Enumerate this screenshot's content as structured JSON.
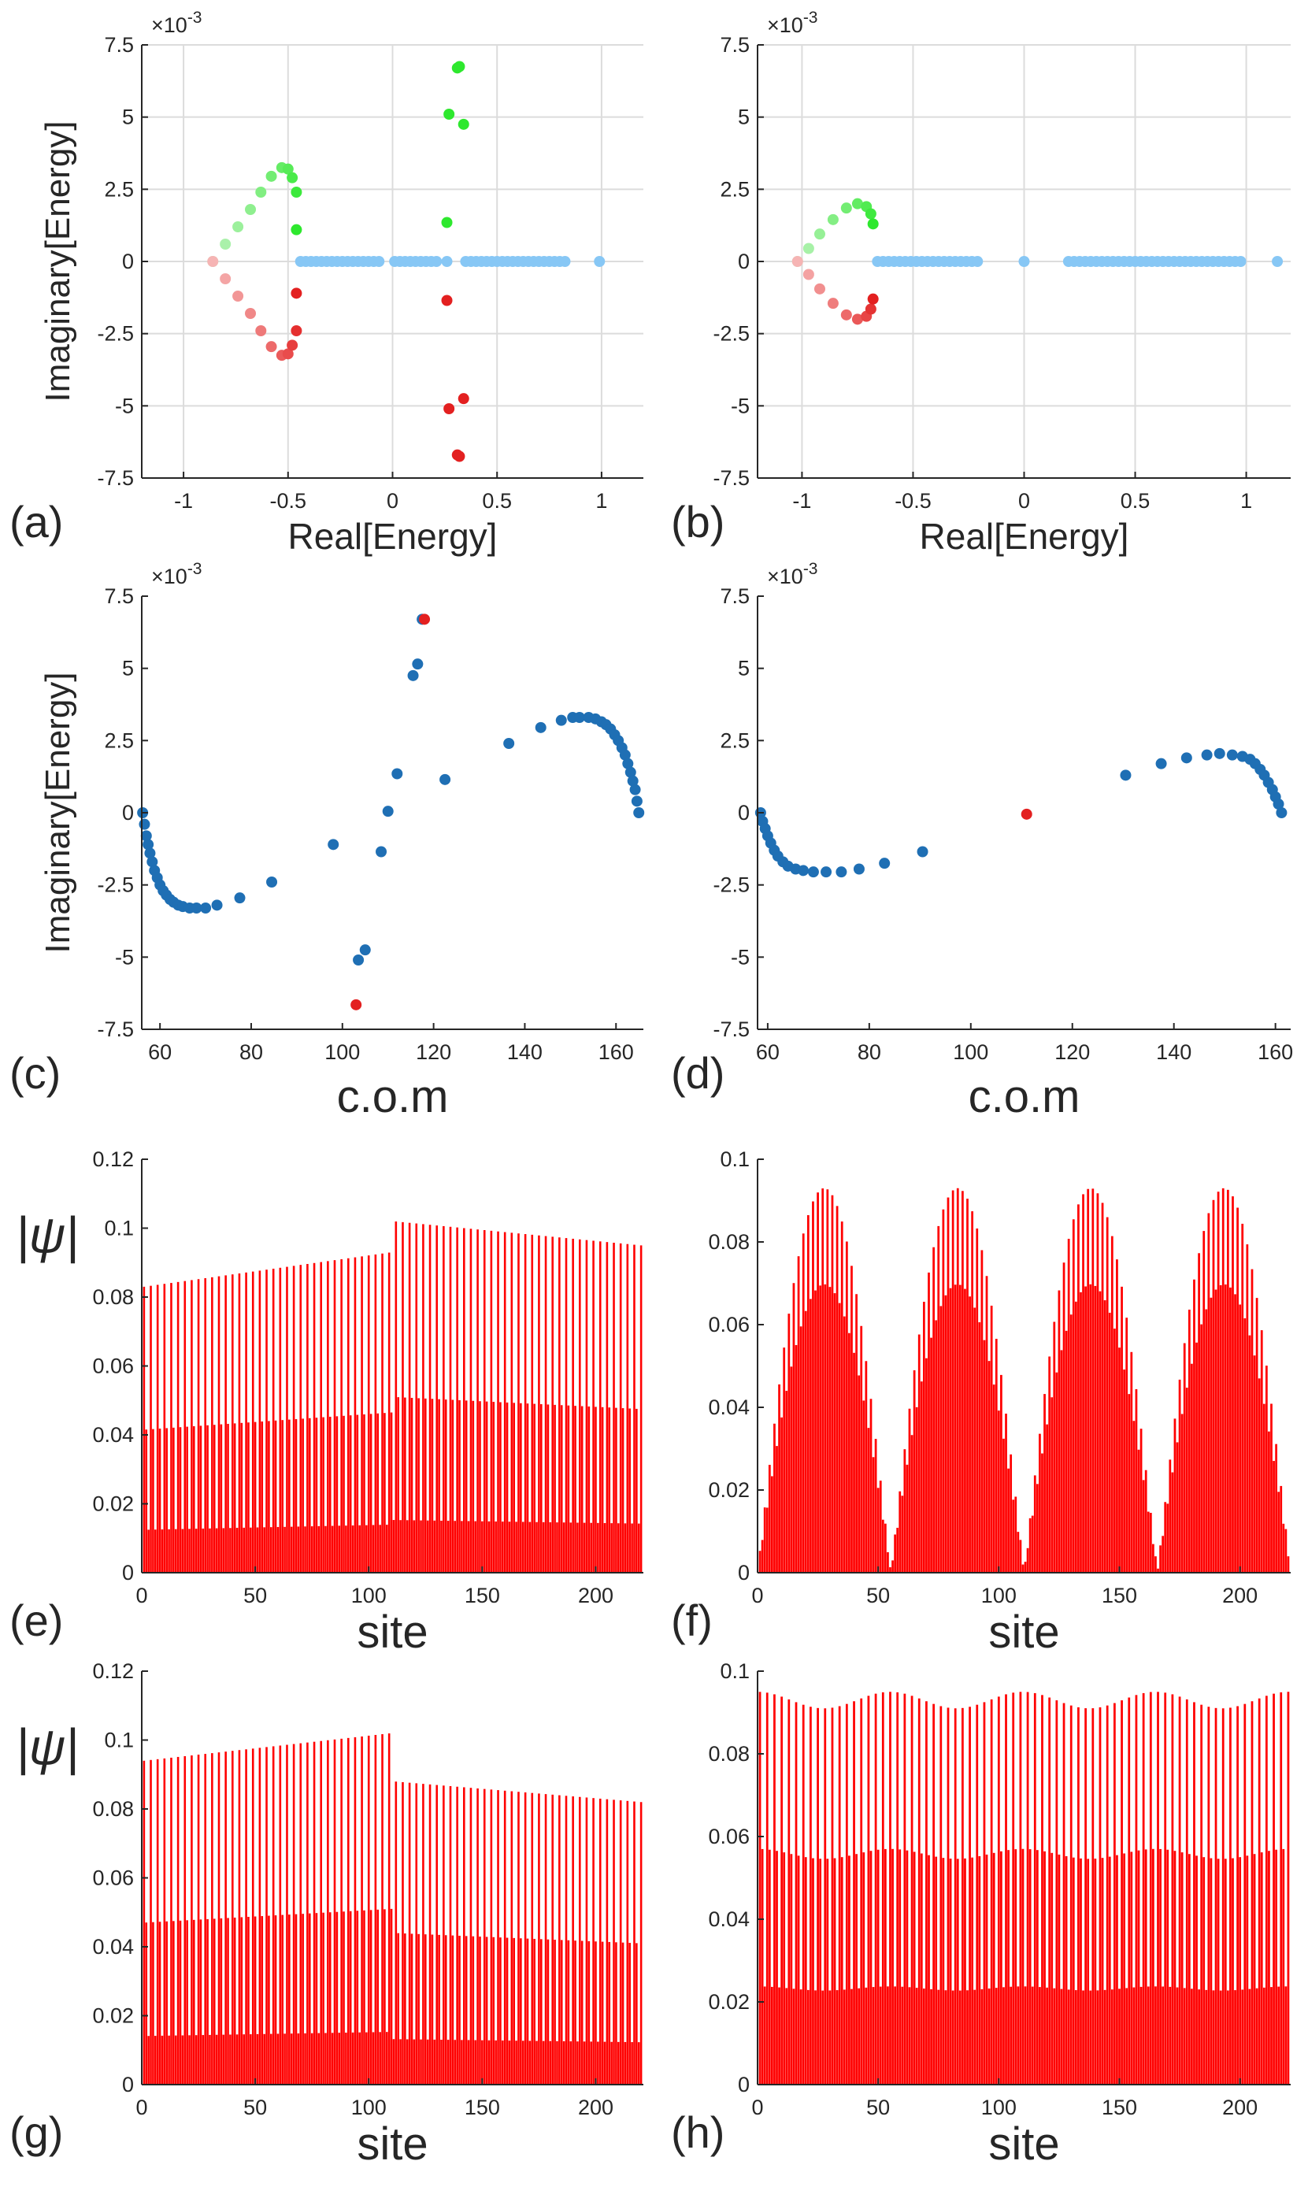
{
  "figure": {
    "colors": {
      "cyan": "#87c7f5",
      "blue": "#1f6fb4",
      "red": "#e32020",
      "redLight": "#f6b4b4",
      "green": "#2ee82e",
      "greenLight": "#b8f2b8",
      "bar": "#ff0000",
      "axis": "#262626",
      "grid": "#dcdcdc"
    }
  },
  "chart_data": [
    {
      "id": "a",
      "type": "scatter",
      "panel_label": "(a)",
      "xlabel": "Real[Energy]",
      "ylabel": "Imaginary[Energy]",
      "exponent_label": "×10",
      "exponent_power": "-3",
      "xlim": [
        -1.2,
        1.2
      ],
      "ylim": [
        -7.5,
        7.5
      ],
      "xticks": [
        -1,
        -0.5,
        0,
        0.5,
        1
      ],
      "xtick_labels": [
        "-1",
        "-0.5",
        "0",
        "0.5",
        "1"
      ],
      "yticks": [
        -7.5,
        -5,
        -2.5,
        0,
        2.5,
        5,
        7.5
      ],
      "ytick_labels": [
        "-7.5",
        "-5",
        "-2.5",
        "0",
        "2.5",
        "5",
        "7.5"
      ],
      "grid": true,
      "series": [
        {
          "name": "bulk",
          "color": "cyan",
          "segments": [
            [
              -0.44,
              -0.05,
              0.025
            ],
            [
              0.01,
              0.22,
              0.025
            ],
            [
              0.35,
              0.84,
              0.025
            ]
          ],
          "points": [
            [
              0.26,
              0
            ],
            [
              0.99,
              0
            ]
          ]
        },
        {
          "name": "upper-arc",
          "color_from": "greenLight",
          "color_to": "green",
          "points": [
            [
              -0.86,
              0
            ],
            [
              -0.8,
              0.6
            ],
            [
              -0.74,
              1.2
            ],
            [
              -0.68,
              1.8
            ],
            [
              -0.63,
              2.4
            ],
            [
              -0.58,
              2.95
            ],
            [
              -0.53,
              3.25
            ],
            [
              -0.5,
              3.2
            ],
            [
              -0.48,
              2.9
            ],
            [
              -0.46,
              2.4
            ],
            [
              -0.46,
              1.1
            ]
          ]
        },
        {
          "name": "lower-arc",
          "color_from": "redLight",
          "color_to": "red",
          "points": [
            [
              -0.86,
              0
            ],
            [
              -0.8,
              -0.6
            ],
            [
              -0.74,
              -1.2
            ],
            [
              -0.68,
              -1.8
            ],
            [
              -0.63,
              -2.4
            ],
            [
              -0.58,
              -2.95
            ],
            [
              -0.53,
              -3.25
            ],
            [
              -0.5,
              -3.2
            ],
            [
              -0.48,
              -2.9
            ],
            [
              -0.46,
              -2.4
            ],
            [
              -0.46,
              -1.1
            ]
          ]
        },
        {
          "name": "center-upper",
          "color": "green",
          "points": [
            [
              0.26,
              1.35
            ],
            [
              0.27,
              5.1
            ],
            [
              0.31,
              6.7
            ],
            [
              0.32,
              6.75
            ],
            [
              0.34,
              4.75
            ]
          ]
        },
        {
          "name": "center-lower",
          "color": "red",
          "points": [
            [
              0.26,
              -1.35
            ],
            [
              0.27,
              -5.1
            ],
            [
              0.31,
              -6.7
            ],
            [
              0.32,
              -6.75
            ],
            [
              0.34,
              -4.75
            ]
          ]
        }
      ]
    },
    {
      "id": "b",
      "type": "scatter",
      "panel_label": "(b)",
      "xlabel": "Real[Energy]",
      "ylabel": "",
      "exponent_label": "×10",
      "exponent_power": "-3",
      "xlim": [
        -1.2,
        1.2
      ],
      "ylim": [
        -7.5,
        7.5
      ],
      "xticks": [
        -1,
        -0.5,
        0,
        0.5,
        1
      ],
      "xtick_labels": [
        "-1",
        "-0.5",
        "0",
        "0.5",
        "1"
      ],
      "yticks": [
        -7.5,
        -5,
        -2.5,
        0,
        2.5,
        5,
        7.5
      ],
      "ytick_labels": [
        "-7.5",
        "-5",
        "-2.5",
        "0",
        "2.5",
        "5",
        "7.5"
      ],
      "grid": true,
      "series": [
        {
          "name": "bulk",
          "color": "cyan",
          "segments": [
            [
              -0.66,
              -0.2,
              0.025
            ],
            [
              0.2,
              0.99,
              0.025
            ]
          ],
          "points": [
            [
              0.0,
              0
            ],
            [
              1.14,
              0
            ]
          ]
        },
        {
          "name": "upper-arc",
          "color_from": "greenLight",
          "color_to": "green",
          "points": [
            [
              -1.02,
              0
            ],
            [
              -0.97,
              0.45
            ],
            [
              -0.92,
              0.95
            ],
            [
              -0.86,
              1.45
            ],
            [
              -0.8,
              1.85
            ],
            [
              -0.75,
              2.0
            ],
            [
              -0.71,
              1.9
            ],
            [
              -0.69,
              1.65
            ],
            [
              -0.68,
              1.3
            ]
          ]
        },
        {
          "name": "lower-arc",
          "color_from": "redLight",
          "color_to": "red",
          "points": [
            [
              -1.02,
              0
            ],
            [
              -0.97,
              -0.45
            ],
            [
              -0.92,
              -0.95
            ],
            [
              -0.86,
              -1.45
            ],
            [
              -0.8,
              -1.85
            ],
            [
              -0.75,
              -2.0
            ],
            [
              -0.71,
              -1.9
            ],
            [
              -0.69,
              -1.65
            ],
            [
              -0.68,
              -1.3
            ]
          ]
        }
      ]
    },
    {
      "id": "c",
      "type": "scatter",
      "panel_label": "(c)",
      "xlabel": "c.o.m",
      "ylabel": "Imaginary[Energy]",
      "exponent_label": "×10",
      "exponent_power": "-3",
      "xlim": [
        56,
        166
      ],
      "ylim": [
        -7.5,
        7.5
      ],
      "xticks": [
        60,
        80,
        100,
        120,
        140,
        160
      ],
      "xtick_labels": [
        "60",
        "80",
        "100",
        "120",
        "140",
        "160"
      ],
      "yticks": [
        -7.5,
        -5,
        -2.5,
        0,
        2.5,
        5,
        7.5
      ],
      "ytick_labels": [
        "-7.5",
        "-5",
        "-2.5",
        "0",
        "2.5",
        "5",
        "7.5"
      ],
      "grid": false,
      "series": [
        {
          "name": "states",
          "color": "blue",
          "points": [
            [
              56.2,
              0
            ],
            [
              56.6,
              -0.4
            ],
            [
              57.0,
              -0.8
            ],
            [
              57.4,
              -1.1
            ],
            [
              57.8,
              -1.4
            ],
            [
              58.3,
              -1.7
            ],
            [
              58.8,
              -2.0
            ],
            [
              59.4,
              -2.25
            ],
            [
              60.0,
              -2.5
            ],
            [
              60.7,
              -2.7
            ],
            [
              61.4,
              -2.85
            ],
            [
              62.2,
              -3.0
            ],
            [
              63.0,
              -3.1
            ],
            [
              64.0,
              -3.2
            ],
            [
              65.0,
              -3.25
            ],
            [
              66.5,
              -3.3
            ],
            [
              68.0,
              -3.3
            ],
            [
              70.0,
              -3.3
            ],
            [
              72.5,
              -3.2
            ],
            [
              77.5,
              -2.95
            ],
            [
              84.5,
              -2.4
            ],
            [
              98.0,
              -1.1
            ],
            [
              103.5,
              -5.1
            ],
            [
              105.0,
              -4.75
            ],
            [
              108.5,
              -1.35
            ],
            [
              110.0,
              0.05
            ],
            [
              112.0,
              1.35
            ],
            [
              115.5,
              4.75
            ],
            [
              116.5,
              5.15
            ],
            [
              117.5,
              6.7
            ],
            [
              122.5,
              1.15
            ],
            [
              136.5,
              2.4
            ],
            [
              143.5,
              2.95
            ],
            [
              148.0,
              3.2
            ],
            [
              150.5,
              3.3
            ],
            [
              152.0,
              3.3
            ],
            [
              154.0,
              3.3
            ],
            [
              155.5,
              3.25
            ],
            [
              156.8,
              3.15
            ],
            [
              157.8,
              3.05
            ],
            [
              158.8,
              2.9
            ],
            [
              159.7,
              2.7
            ],
            [
              160.5,
              2.5
            ],
            [
              161.3,
              2.25
            ],
            [
              162.0,
              2.0
            ],
            [
              162.6,
              1.7
            ],
            [
              163.2,
              1.4
            ],
            [
              163.7,
              1.1
            ],
            [
              164.2,
              0.8
            ],
            [
              164.6,
              0.4
            ],
            [
              165.0,
              0
            ]
          ]
        },
        {
          "name": "highlight",
          "color": "red",
          "points": [
            [
              103.0,
              -6.65
            ],
            [
              118.0,
              6.7
            ]
          ]
        }
      ]
    },
    {
      "id": "d",
      "type": "scatter",
      "panel_label": "(d)",
      "xlabel": "c.o.m",
      "ylabel": "",
      "exponent_label": "×10",
      "exponent_power": "-3",
      "xlim": [
        58,
        163
      ],
      "ylim": [
        -7.5,
        7.5
      ],
      "xticks": [
        60,
        80,
        100,
        120,
        140,
        160
      ],
      "xtick_labels": [
        "60",
        "80",
        "100",
        "120",
        "140",
        "160"
      ],
      "yticks": [
        -7.5,
        -5,
        -2.5,
        0,
        2.5,
        5,
        7.5
      ],
      "ytick_labels": [
        "-7.5",
        "-5",
        "-2.5",
        "0",
        "2.5",
        "5",
        "7.5"
      ],
      "grid": false,
      "series": [
        {
          "name": "states",
          "color": "blue",
          "points": [
            [
              58.6,
              0
            ],
            [
              59.0,
              -0.3
            ],
            [
              59.5,
              -0.55
            ],
            [
              60.0,
              -0.8
            ],
            [
              60.6,
              -1.05
            ],
            [
              61.3,
              -1.3
            ],
            [
              62.0,
              -1.5
            ],
            [
              63.0,
              -1.7
            ],
            [
              64.0,
              -1.85
            ],
            [
              65.5,
              -1.95
            ],
            [
              67.0,
              -2.0
            ],
            [
              69.0,
              -2.05
            ],
            [
              71.5,
              -2.05
            ],
            [
              74.5,
              -2.05
            ],
            [
              78.0,
              -1.95
            ],
            [
              83.0,
              -1.75
            ],
            [
              90.5,
              -1.35
            ],
            [
              130.5,
              1.3
            ],
            [
              137.5,
              1.7
            ],
            [
              142.5,
              1.9
            ],
            [
              146.5,
              2.0
            ],
            [
              149.0,
              2.05
            ],
            [
              151.5,
              2.0
            ],
            [
              153.5,
              1.95
            ],
            [
              155.0,
              1.85
            ],
            [
              156.0,
              1.7
            ],
            [
              157.0,
              1.5
            ],
            [
              157.8,
              1.3
            ],
            [
              158.6,
              1.05
            ],
            [
              159.4,
              0.8
            ],
            [
              160.0,
              0.55
            ],
            [
              160.6,
              0.3
            ],
            [
              161.2,
              0
            ]
          ]
        },
        {
          "name": "highlight",
          "color": "red",
          "points": [
            [
              111.0,
              -0.05
            ]
          ]
        }
      ]
    },
    {
      "id": "e",
      "type": "bar",
      "panel_label": "(e)",
      "xlabel": "site",
      "ylabel": "|ψ|",
      "xlim": [
        0,
        221
      ],
      "ylim": [
        0,
        0.12
      ],
      "sites": 220,
      "xticks": [
        0,
        50,
        100,
        150,
        200
      ],
      "xtick_labels": [
        "0",
        "50",
        "100",
        "150",
        "200"
      ],
      "yticks": [
        0,
        0.02,
        0.04,
        0.06,
        0.08,
        0.1,
        0.12
      ],
      "ytick_labels": [
        "0",
        "0.02",
        "0.04",
        "0.06",
        "0.08",
        "0.1",
        "0.12"
      ],
      "profile": {
        "kind": "step",
        "step_at": 110,
        "env_left": [
          0.083,
          0.093
        ],
        "env_right": [
          0.102,
          0.095
        ],
        "period": 3,
        "pattern": [
          1.0,
          0.5,
          0.15
        ]
      }
    },
    {
      "id": "f",
      "type": "bar",
      "panel_label": "(f)",
      "xlabel": "site",
      "ylabel": "",
      "xlim": [
        0,
        221
      ],
      "ylim": [
        0,
        0.1
      ],
      "sites": 220,
      "xticks": [
        0,
        50,
        100,
        150,
        200
      ],
      "xtick_labels": [
        "0",
        "50",
        "100",
        "150",
        "200"
      ],
      "yticks": [
        0,
        0.02,
        0.04,
        0.06,
        0.08,
        0.1
      ],
      "ytick_labels": [
        "0",
        "0.02",
        "0.04",
        "0.06",
        "0.08",
        "0.1"
      ],
      "profile": {
        "kind": "humps",
        "peak": 0.093,
        "humps": 4,
        "period": 2,
        "pattern": [
          1.0,
          0.75
        ]
      }
    },
    {
      "id": "g",
      "type": "bar",
      "panel_label": "(g)",
      "xlabel": "site",
      "ylabel": "|ψ|",
      "xlim": [
        0,
        221
      ],
      "ylim": [
        0,
        0.12
      ],
      "sites": 220,
      "xticks": [
        0,
        50,
        100,
        150,
        200
      ],
      "xtick_labels": [
        "0",
        "50",
        "100",
        "150",
        "200"
      ],
      "yticks": [
        0,
        0.02,
        0.04,
        0.06,
        0.08,
        0.1,
        0.12
      ],
      "ytick_labels": [
        "0",
        "0.02",
        "0.04",
        "0.06",
        "0.08",
        "0.1",
        "0.12"
      ],
      "profile": {
        "kind": "step",
        "step_at": 110,
        "env_left": [
          0.094,
          0.102
        ],
        "env_right": [
          0.088,
          0.082
        ],
        "period": 3,
        "pattern": [
          1.0,
          0.5,
          0.15
        ]
      }
    },
    {
      "id": "h",
      "type": "bar",
      "panel_label": "(h)",
      "xlabel": "site",
      "ylabel": "",
      "xlim": [
        0,
        221
      ],
      "ylim": [
        0,
        0.1
      ],
      "sites": 220,
      "xticks": [
        0,
        50,
        100,
        150,
        200
      ],
      "xtick_labels": [
        "0",
        "50",
        "100",
        "150",
        "200"
      ],
      "yticks": [
        0,
        0.02,
        0.04,
        0.06,
        0.08,
        0.1
      ],
      "ytick_labels": [
        "0",
        "0.02",
        "0.04",
        "0.06",
        "0.08",
        "0.1"
      ],
      "profile": {
        "kind": "wave",
        "base": 0.093,
        "amp": 0.002,
        "period": 3,
        "pattern": [
          1.0,
          0.6,
          0.25
        ]
      }
    }
  ]
}
